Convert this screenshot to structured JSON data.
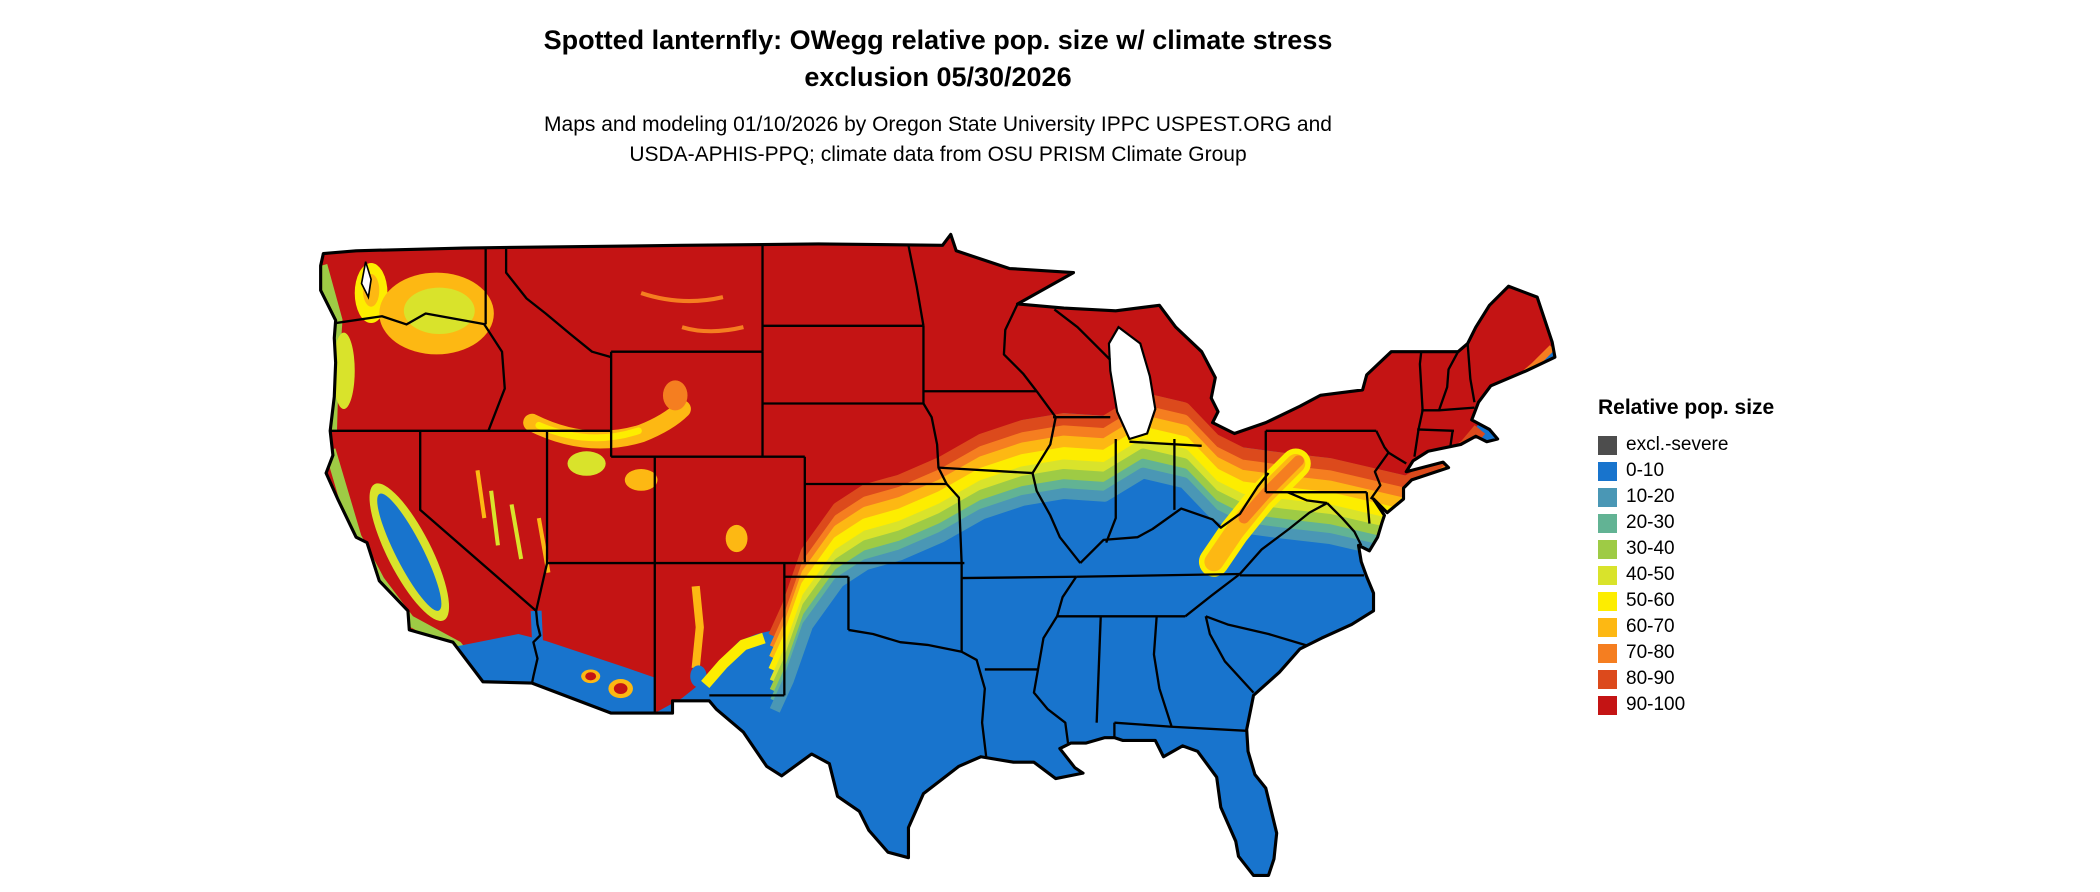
{
  "title": {
    "line1": "Spotted lanternfly: OWegg relative pop. size w/ climate stress",
    "line2": "exclusion 05/30/2026"
  },
  "subtitle": {
    "line1": "Maps and modeling 01/10/2026 by Oregon State University IPPC USPEST.ORG and",
    "line2": "USDA-APHIS-PPQ; climate data from OSU PRISM Climate Group"
  },
  "legend": {
    "title": "Relative pop. size",
    "items": [
      {
        "label": "excl.-severe",
        "color": "#4d4d4d"
      },
      {
        "label": "0-10",
        "color": "#1874cd"
      },
      {
        "label": "10-20",
        "color": "#4a97b5"
      },
      {
        "label": "20-30",
        "color": "#62b394"
      },
      {
        "label": "30-40",
        "color": "#9ecb45"
      },
      {
        "label": "40-50",
        "color": "#d9e32b"
      },
      {
        "label": "50-60",
        "color": "#fded00"
      },
      {
        "label": "60-70",
        "color": "#fdb813"
      },
      {
        "label": "70-80",
        "color": "#f57e20"
      },
      {
        "label": "80-90",
        "color": "#dc4a1c"
      },
      {
        "label": "90-100",
        "color": "#c41414"
      }
    ]
  },
  "chart_data": {
    "type": "heatmap",
    "title": "Spotted lanternfly OWegg relative population size with climate stress exclusion, 05/30/2026",
    "legend_title": "Relative pop. size",
    "classes": [
      "excl.-severe",
      "0-10",
      "10-20",
      "20-30",
      "30-40",
      "40-50",
      "50-60",
      "60-70",
      "70-80",
      "80-90",
      "90-100"
    ],
    "regions": [
      {
        "area": "Northern tier: interior Pacific Northwest, northern Rockies, Montana, Dakotas, Minnesota, Wisconsin, northern Michigan, upstate New York, northern New England",
        "value": "90-100"
      },
      {
        "area": "Interior West highlands: Great Basin, Utah, Colorado, northern Arizona, central New Mexico, Sierra Nevada",
        "value": "80-100 with yellow/green valley pockets"
      },
      {
        "area": "Transition band: central Nebraska, northern Kansas fringe, Iowa, northern Illinois, Indiana, Ohio, Pennsylvania, New Jersey, Appalachians, southern New England coast",
        "value": "10-90 gradient (orange to teal)"
      },
      {
        "area": "South and Southeast: Texas, Gulf states, lower Mississippi valley, Florida, Carolinas, California Central Valley, low deserts of southern California/Arizona",
        "value": "0-10"
      }
    ]
  }
}
